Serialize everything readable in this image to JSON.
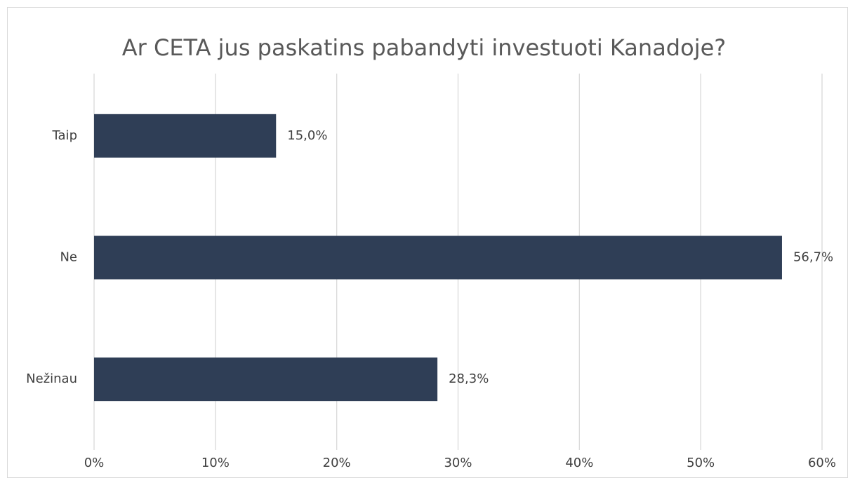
{
  "chart_data": {
    "type": "hbar",
    "title": "Ar CETA jus paskatins pabandyti investuoti Kanadoje?",
    "categories": [
      "Taip",
      "Ne",
      "Nežinau"
    ],
    "values": [
      15.0,
      56.7,
      28.3
    ],
    "value_labels": [
      "15,0%",
      "56,7%",
      "28,3%"
    ],
    "color": "#2f3e56",
    "xlim": [
      0,
      60
    ],
    "xticks": [
      {
        "value": 0,
        "label": "0%"
      },
      {
        "value": 10,
        "label": "10%"
      },
      {
        "value": 20,
        "label": "20%"
      },
      {
        "value": 30,
        "label": "30%"
      },
      {
        "value": 40,
        "label": "40%"
      },
      {
        "value": 50,
        "label": "50%"
      },
      {
        "value": 60,
        "label": "60%"
      }
    ],
    "grid": true
  }
}
